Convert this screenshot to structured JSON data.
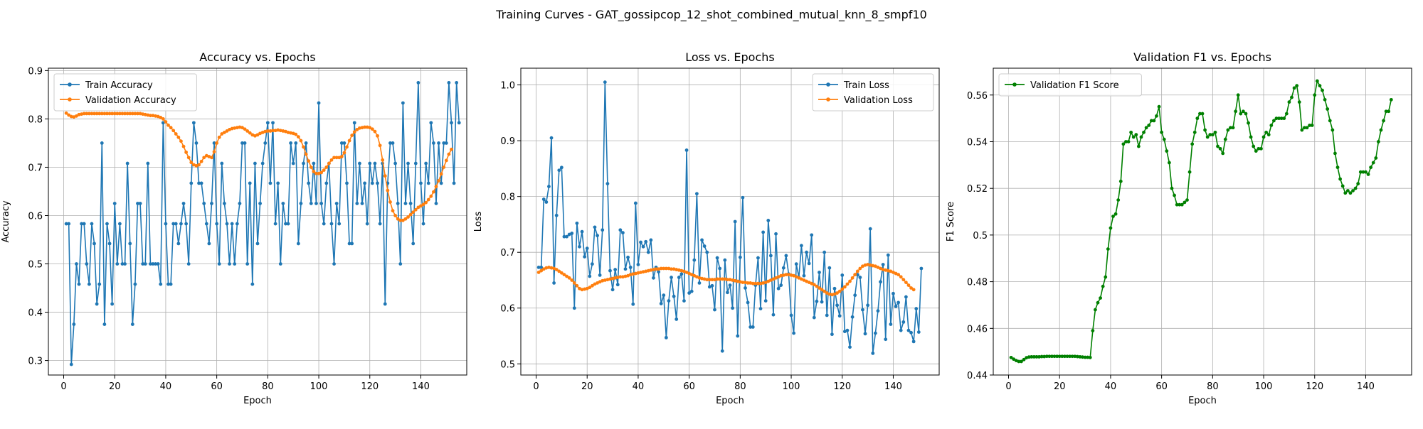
{
  "figure": {
    "suptitle": "Training Curves - GAT_gossipcop_12_shot_combined_mutual_knn_8_smpf10"
  },
  "colors": {
    "blue": "#1f77b4",
    "orange": "#ff7f0e",
    "green": "#008000",
    "grid": "#b0b0b0"
  },
  "chart_data": [
    {
      "type": "line",
      "title": "Accuracy vs. Epochs",
      "xlabel": "Epoch",
      "ylabel": "Accuracy",
      "xlim": [
        -6,
        158
      ],
      "ylim": [
        0.27,
        0.905
      ],
      "xticks": [
        0,
        20,
        40,
        60,
        80,
        100,
        120,
        140
      ],
      "yticks": [
        0.3,
        0.4,
        0.5,
        0.6,
        0.7,
        0.8,
        0.9
      ],
      "grid": true,
      "legend": "upper left",
      "series": [
        {
          "name": "Train Accuracy",
          "color": "blue",
          "y": [
            0.583,
            0.583,
            0.292,
            0.375,
            0.5,
            0.458,
            0.583,
            0.583,
            0.5,
            0.458,
            0.583,
            0.542,
            0.417,
            0.458,
            0.75,
            0.375,
            0.583,
            0.542,
            0.417,
            0.625,
            0.5,
            0.583,
            0.5,
            0.5,
            0.708,
            0.542,
            0.375,
            0.458,
            0.625,
            0.625,
            0.5,
            0.5,
            0.708,
            0.5,
            0.5,
            0.5,
            0.5,
            0.458,
            0.792,
            0.583,
            0.458,
            0.458,
            0.583,
            0.583,
            0.542,
            0.583,
            0.625,
            0.583,
            0.5,
            0.667,
            0.792,
            0.75,
            0.667,
            0.667,
            0.625,
            0.583,
            0.542,
            0.625,
            0.75,
            0.583,
            0.5,
            0.708,
            0.625,
            0.583,
            0.5,
            0.583,
            0.5,
            0.583,
            0.625,
            0.75,
            0.75,
            0.5,
            0.667,
            0.458,
            0.708,
            0.542,
            0.625,
            0.708,
            0.75,
            0.792,
            0.667,
            0.792,
            0.583,
            0.667,
            0.5,
            0.625,
            0.583,
            0.583,
            0.75,
            0.708,
            0.75,
            0.542,
            0.625,
            0.708,
            0.75,
            0.667,
            0.625,
            0.708,
            0.625,
            0.833,
            0.625,
            0.583,
            0.667,
            0.708,
            0.583,
            0.5,
            0.625,
            0.583,
            0.75,
            0.75,
            0.667,
            0.542,
            0.542,
            0.792,
            0.625,
            0.708,
            0.625,
            0.667,
            0.583,
            0.708,
            0.667,
            0.708,
            0.667,
            0.583,
            0.708,
            0.417,
            0.667,
            0.75,
            0.75,
            0.708,
            0.625,
            0.5,
            0.833,
            0.625,
            0.708,
            0.625,
            0.542,
            0.708,
            0.875,
            0.667,
            0.583,
            0.708,
            0.667,
            0.792,
            0.75,
            0.625,
            0.75,
            0.667,
            0.75,
            0.75,
            0.875,
            0.792,
            0.667,
            0.875,
            0.792
          ]
        },
        {
          "name": "Validation Accuracy",
          "color": "orange",
          "y": [
            0.812,
            0.808,
            0.805,
            0.804,
            0.806,
            0.809,
            0.81,
            0.811,
            0.811,
            0.811,
            0.811,
            0.811,
            0.811,
            0.811,
            0.811,
            0.811,
            0.811,
            0.811,
            0.811,
            0.811,
            0.811,
            0.811,
            0.811,
            0.811,
            0.811,
            0.811,
            0.811,
            0.811,
            0.811,
            0.811,
            0.81,
            0.809,
            0.808,
            0.807,
            0.807,
            0.806,
            0.805,
            0.803,
            0.8,
            0.794,
            0.787,
            0.782,
            0.776,
            0.769,
            0.762,
            0.754,
            0.743,
            0.731,
            0.72,
            0.71,
            0.705,
            0.703,
            0.705,
            0.712,
            0.72,
            0.724,
            0.722,
            0.72,
            0.732,
            0.75,
            0.762,
            0.769,
            0.772,
            0.775,
            0.778,
            0.78,
            0.781,
            0.782,
            0.783,
            0.782,
            0.779,
            0.775,
            0.771,
            0.767,
            0.765,
            0.767,
            0.77,
            0.772,
            0.774,
            0.775,
            0.775,
            0.776,
            0.776,
            0.777,
            0.776,
            0.775,
            0.774,
            0.772,
            0.771,
            0.77,
            0.768,
            0.763,
            0.755,
            0.742,
            0.727,
            0.713,
            0.7,
            0.691,
            0.687,
            0.687,
            0.689,
            0.694,
            0.7,
            0.708,
            0.715,
            0.72,
            0.72,
            0.72,
            0.722,
            0.73,
            0.742,
            0.755,
            0.766,
            0.773,
            0.778,
            0.781,
            0.782,
            0.783,
            0.783,
            0.782,
            0.779,
            0.774,
            0.765,
            0.745,
            0.715,
            0.682,
            0.652,
            0.628,
            0.61,
            0.6,
            0.593,
            0.59,
            0.59,
            0.593,
            0.597,
            0.602,
            0.607,
            0.612,
            0.617,
            0.62,
            0.623,
            0.627,
            0.633,
            0.64,
            0.649,
            0.66,
            0.672,
            0.686,
            0.7,
            0.714,
            0.727,
            0.737
          ]
        }
      ]
    },
    {
      "type": "line",
      "title": "Loss vs. Epochs",
      "xlabel": "Epoch",
      "ylabel": "Loss",
      "xlim": [
        -6,
        158
      ],
      "ylim": [
        0.48,
        1.03
      ],
      "xticks": [
        0,
        20,
        40,
        60,
        80,
        100,
        120,
        140
      ],
      "yticks": [
        0.5,
        0.6,
        0.7,
        0.8,
        0.9,
        1.0
      ],
      "yticklabels": [
        "0.5",
        "0.6",
        "0.7",
        "0.8",
        "0.9",
        "1.0"
      ],
      "grid": true,
      "legend": "upper right",
      "series": [
        {
          "name": "Train Loss",
          "color": "blue",
          "y": [
            0.673,
            0.673,
            0.795,
            0.79,
            0.818,
            0.905,
            0.645,
            0.766,
            0.847,
            0.852,
            0.728,
            0.728,
            0.732,
            0.734,
            0.6,
            0.752,
            0.71,
            0.737,
            0.692,
            0.707,
            0.657,
            0.679,
            0.745,
            0.73,
            0.659,
            0.74,
            1.005,
            0.823,
            0.667,
            0.633,
            0.669,
            0.642,
            0.74,
            0.735,
            0.67,
            0.691,
            0.673,
            0.607,
            0.788,
            0.678,
            0.718,
            0.71,
            0.719,
            0.7,
            0.722,
            0.654,
            0.673,
            0.665,
            0.608,
            0.623,
            0.547,
            0.613,
            0.655,
            0.621,
            0.58,
            0.655,
            0.661,
            0.613,
            0.883,
            0.627,
            0.63,
            0.686,
            0.805,
            0.645,
            0.722,
            0.711,
            0.7,
            0.638,
            0.64,
            0.597,
            0.69,
            0.671,
            0.523,
            0.686,
            0.628,
            0.641,
            0.6,
            0.755,
            0.55,
            0.691,
            0.798,
            0.636,
            0.61,
            0.566,
            0.566,
            0.641,
            0.69,
            0.599,
            0.736,
            0.613,
            0.757,
            0.694,
            0.588,
            0.733,
            0.635,
            0.641,
            0.672,
            0.694,
            0.661,
            0.587,
            0.555,
            0.679,
            0.655,
            0.712,
            0.658,
            0.7,
            0.68,
            0.731,
            0.583,
            0.612,
            0.664,
            0.611,
            0.7,
            0.587,
            0.672,
            0.553,
            0.635,
            0.605,
            0.586,
            0.659,
            0.558,
            0.56,
            0.53,
            0.584,
            0.623,
            0.66,
            0.655,
            0.597,
            0.554,
            0.605,
            0.742,
            0.519,
            0.555,
            0.595,
            0.647,
            0.678,
            0.544,
            0.695,
            0.571,
            0.626,
            0.603,
            0.61,
            0.56,
            0.575,
            0.62,
            0.56,
            0.556,
            0.54,
            0.599,
            0.557,
            0.671
          ]
        },
        {
          "name": "Validation Loss",
          "color": "orange",
          "y": [
            0.664,
            0.667,
            0.67,
            0.672,
            0.673,
            0.672,
            0.671,
            0.669,
            0.666,
            0.663,
            0.66,
            0.657,
            0.654,
            0.65,
            0.645,
            0.64,
            0.635,
            0.633,
            0.634,
            0.635,
            0.637,
            0.64,
            0.643,
            0.645,
            0.647,
            0.649,
            0.65,
            0.651,
            0.652,
            0.653,
            0.654,
            0.655,
            0.656,
            0.656,
            0.657,
            0.658,
            0.66,
            0.661,
            0.662,
            0.663,
            0.664,
            0.665,
            0.666,
            0.667,
            0.668,
            0.669,
            0.67,
            0.67,
            0.671,
            0.671,
            0.671,
            0.671,
            0.67,
            0.67,
            0.669,
            0.668,
            0.667,
            0.666,
            0.664,
            0.662,
            0.66,
            0.658,
            0.656,
            0.654,
            0.653,
            0.652,
            0.651,
            0.651,
            0.651,
            0.651,
            0.652,
            0.652,
            0.652,
            0.652,
            0.651,
            0.651,
            0.65,
            0.649,
            0.648,
            0.647,
            0.646,
            0.646,
            0.645,
            0.645,
            0.644,
            0.644,
            0.644,
            0.644,
            0.645,
            0.646,
            0.648,
            0.65,
            0.652,
            0.654,
            0.656,
            0.658,
            0.659,
            0.66,
            0.66,
            0.659,
            0.658,
            0.656,
            0.654,
            0.652,
            0.65,
            0.648,
            0.646,
            0.644,
            0.642,
            0.639,
            0.636,
            0.633,
            0.63,
            0.627,
            0.625,
            0.624,
            0.625,
            0.627,
            0.63,
            0.634,
            0.638,
            0.643,
            0.648,
            0.654,
            0.66,
            0.666,
            0.671,
            0.675,
            0.677,
            0.678,
            0.677,
            0.676,
            0.675,
            0.673,
            0.671,
            0.669,
            0.668,
            0.667,
            0.666,
            0.664,
            0.662,
            0.66,
            0.656,
            0.651,
            0.646,
            0.641,
            0.636,
            0.633
          ]
        }
      ]
    },
    {
      "type": "line",
      "title": "Validation F1 vs. Epochs",
      "xlabel": "Epoch",
      "ylabel": "F1 Score",
      "xlim": [
        -6,
        158
      ],
      "ylim": [
        0.44,
        0.5715
      ],
      "xticks": [
        0,
        20,
        40,
        60,
        80,
        100,
        120,
        140
      ],
      "yticks": [
        0.44,
        0.46,
        0.48,
        0.5,
        0.52,
        0.54,
        0.56
      ],
      "grid": true,
      "legend": "upper left",
      "series": [
        {
          "name": "Validation F1 Score",
          "color": "green",
          "y": [
            0.4475,
            0.4468,
            0.4462,
            0.4458,
            0.4458,
            0.4466,
            0.4474,
            0.4477,
            0.4478,
            0.4478,
            0.4478,
            0.4478,
            0.4479,
            0.4479,
            0.448,
            0.448,
            0.448,
            0.448,
            0.448,
            0.448,
            0.448,
            0.448,
            0.448,
            0.448,
            0.448,
            0.448,
            0.4479,
            0.4478,
            0.4477,
            0.4476,
            0.4476,
            0.4475,
            0.459,
            0.468,
            0.471,
            0.473,
            0.478,
            0.482,
            0.494,
            0.503,
            0.508,
            0.509,
            0.515,
            0.523,
            0.539,
            0.54,
            0.54,
            0.544,
            0.542,
            0.543,
            0.538,
            0.542,
            0.544,
            0.546,
            0.547,
            0.549,
            0.549,
            0.551,
            0.555,
            0.544,
            0.541,
            0.536,
            0.531,
            0.52,
            0.517,
            0.513,
            0.513,
            0.513,
            0.514,
            0.515,
            0.527,
            0.539,
            0.544,
            0.55,
            0.552,
            0.552,
            0.545,
            0.542,
            0.543,
            0.543,
            0.544,
            0.538,
            0.537,
            0.535,
            0.541,
            0.545,
            0.546,
            0.546,
            0.553,
            0.56,
            0.552,
            0.553,
            0.552,
            0.548,
            0.542,
            0.538,
            0.536,
            0.537,
            0.537,
            0.542,
            0.544,
            0.543,
            0.547,
            0.549,
            0.55,
            0.55,
            0.55,
            0.55,
            0.552,
            0.557,
            0.559,
            0.563,
            0.564,
            0.557,
            0.545,
            0.546,
            0.546,
            0.547,
            0.547,
            0.56,
            0.566,
            0.564,
            0.562,
            0.558,
            0.554,
            0.549,
            0.545,
            0.535,
            0.529,
            0.524,
            0.521,
            0.518,
            0.519,
            0.518,
            0.519,
            0.52,
            0.522,
            0.527,
            0.527,
            0.527,
            0.526,
            0.529,
            0.531,
            0.533,
            0.54,
            0.545,
            0.549,
            0.553,
            0.553,
            0.558
          ]
        }
      ]
    }
  ]
}
